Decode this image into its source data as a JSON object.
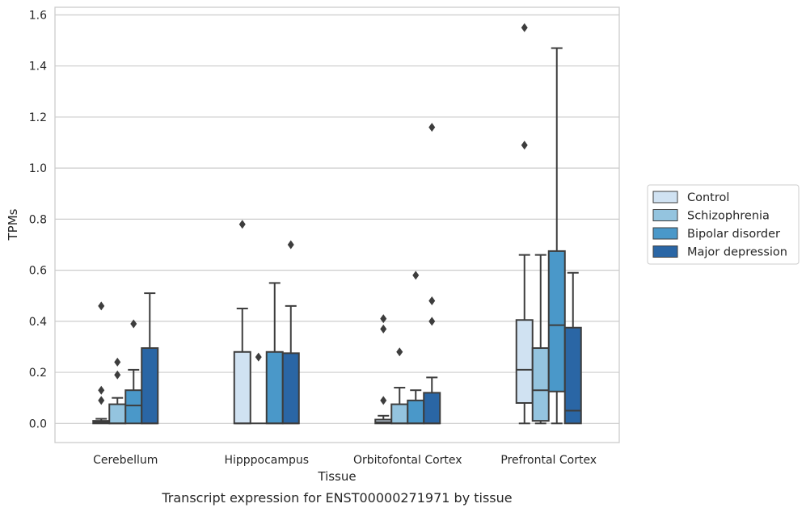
{
  "chart_data": {
    "type": "box",
    "caption": "Transcript expression for ENST00000271971 by tissue",
    "xlabel": "Tissue",
    "ylabel": "TPMs",
    "ylim": [
      -0.075,
      1.63
    ],
    "yticks": [
      "0.0",
      "0.2",
      "0.4",
      "0.6",
      "0.8",
      "1.0",
      "1.2",
      "1.4",
      "1.6"
    ],
    "grid": true,
    "legend_position": "right",
    "categories": [
      "Cerebellum",
      "Hipppocampus",
      "Orbitofontal Cortex",
      "Prefrontal Cortex"
    ],
    "series": [
      {
        "name": "Control",
        "color": "#d0e2f2",
        "boxes": [
          {
            "whislo": 0.0,
            "q1": 0.0,
            "med": 0.005,
            "q3": 0.01,
            "whishi": 0.018,
            "fliers": [
              0.09,
              0.13,
              0.46
            ]
          },
          {
            "whislo": 0.0,
            "q1": 0.0,
            "med": 0.0,
            "q3": 0.28,
            "whishi": 0.45,
            "fliers": [
              0.78
            ]
          },
          {
            "whislo": 0.0,
            "q1": 0.0,
            "med": 0.005,
            "q3": 0.015,
            "whishi": 0.03,
            "fliers": [
              0.09,
              0.37,
              0.41
            ]
          },
          {
            "whislo": 0.0,
            "q1": 0.08,
            "med": 0.21,
            "q3": 0.405,
            "whishi": 0.66,
            "fliers": [
              1.09,
              1.55
            ]
          }
        ]
      },
      {
        "name": "Schizophrenia",
        "color": "#94c4df",
        "boxes": [
          {
            "whislo": 0.0,
            "q1": 0.0,
            "med": 0.0,
            "q3": 0.075,
            "whishi": 0.1,
            "fliers": [
              0.19,
              0.24
            ]
          },
          {
            "whislo": 0.0,
            "q1": 0.0,
            "med": 0.0,
            "q3": 0.0,
            "whishi": 0.0,
            "fliers": [
              0.26
            ]
          },
          {
            "whislo": 0.0,
            "q1": 0.0,
            "med": 0.0,
            "q3": 0.075,
            "whishi": 0.14,
            "fliers": [
              0.28
            ]
          },
          {
            "whislo": 0.0,
            "q1": 0.01,
            "med": 0.13,
            "q3": 0.295,
            "whishi": 0.66,
            "fliers": []
          }
        ]
      },
      {
        "name": "Bipolar disorder",
        "color": "#4a98c9",
        "boxes": [
          {
            "whislo": 0.0,
            "q1": 0.0,
            "med": 0.07,
            "q3": 0.13,
            "whishi": 0.21,
            "fliers": [
              0.39
            ]
          },
          {
            "whislo": 0.0,
            "q1": 0.0,
            "med": 0.0,
            "q3": 0.28,
            "whishi": 0.55,
            "fliers": []
          },
          {
            "whislo": 0.0,
            "q1": 0.0,
            "med": 0.0,
            "q3": 0.09,
            "whishi": 0.13,
            "fliers": [
              0.58
            ]
          },
          {
            "whislo": 0.0,
            "q1": 0.125,
            "med": 0.385,
            "q3": 0.675,
            "whishi": 1.47,
            "fliers": []
          }
        ]
      },
      {
        "name": "Major depression",
        "color": "#2a66a5",
        "boxes": [
          {
            "whislo": 0.0,
            "q1": 0.0,
            "med": 0.0,
            "q3": 0.295,
            "whishi": 0.51,
            "fliers": []
          },
          {
            "whislo": 0.0,
            "q1": 0.0,
            "med": 0.0,
            "q3": 0.275,
            "whishi": 0.46,
            "fliers": [
              0.7
            ]
          },
          {
            "whislo": 0.0,
            "q1": 0.0,
            "med": 0.0,
            "q3": 0.12,
            "whishi": 0.18,
            "fliers": [
              0.4,
              0.48,
              1.16
            ]
          },
          {
            "whislo": 0.0,
            "q1": 0.0,
            "med": 0.05,
            "q3": 0.375,
            "whishi": 0.59,
            "fliers": []
          }
        ]
      }
    ]
  }
}
